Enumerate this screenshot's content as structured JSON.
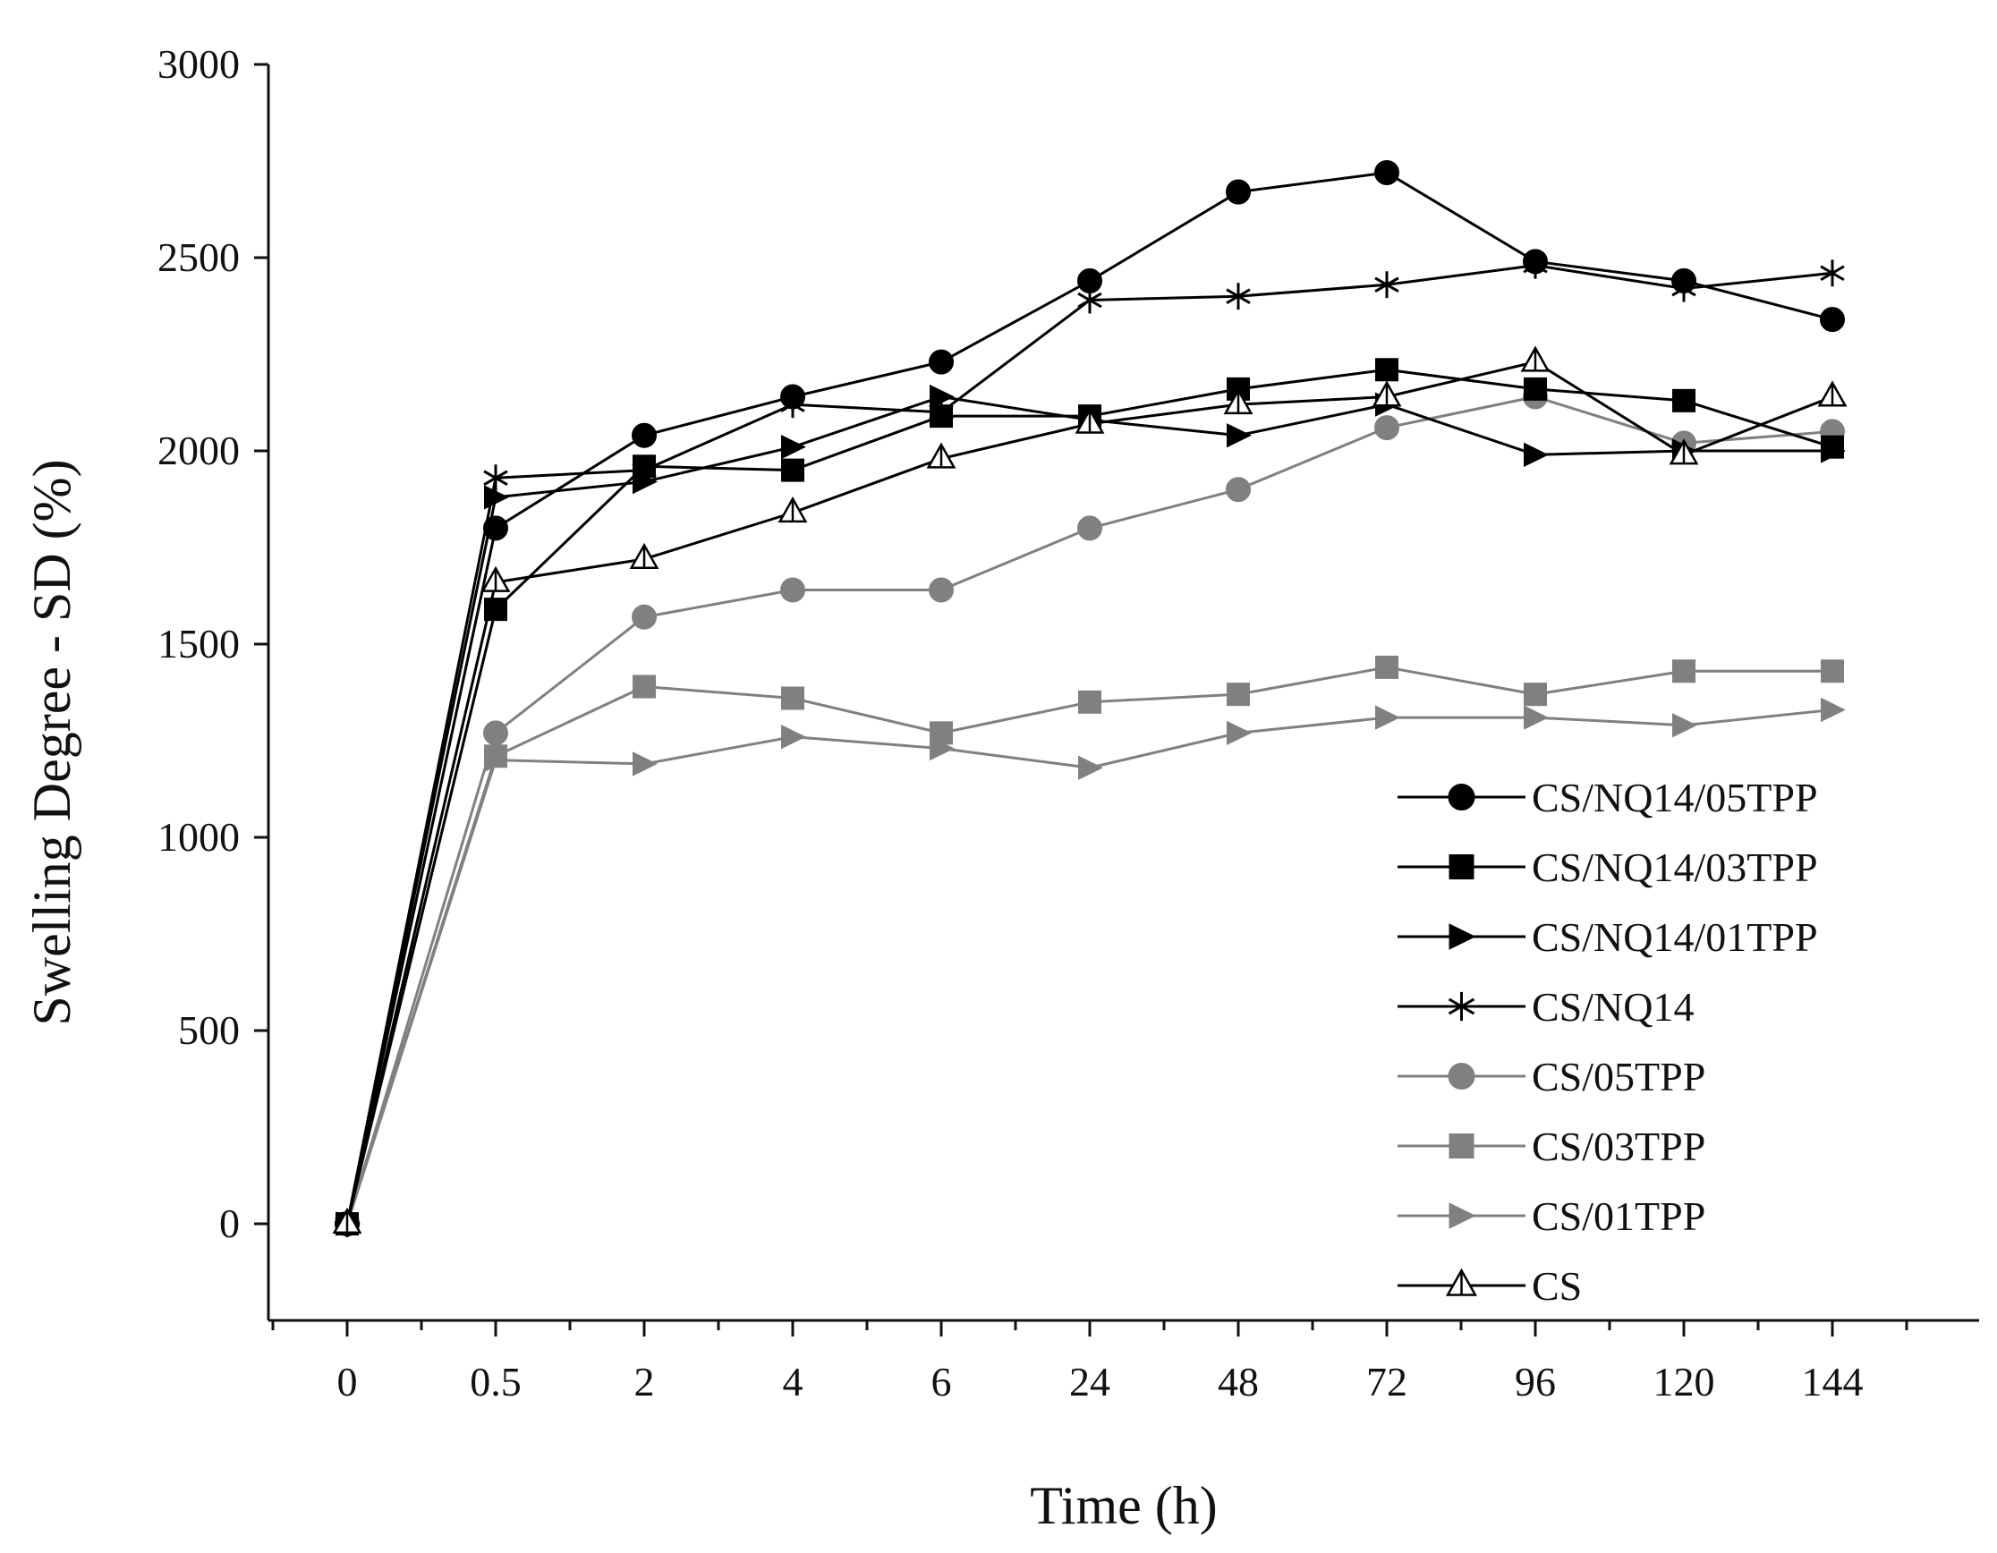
{
  "chart_data": {
    "type": "line",
    "title": "",
    "xlabel": "Time (h)",
    "ylabel": "Swelling Degree - SD (%)",
    "ylim": [
      -250,
      3000
    ],
    "yticks": [
      0,
      500,
      1000,
      1500,
      2000,
      2500,
      3000
    ],
    "categories": [
      "0",
      "0.5",
      "2",
      "4",
      "6",
      "24",
      "48",
      "72",
      "96",
      "120",
      "144"
    ],
    "grid": false,
    "legend_position": "bottom-right",
    "series": [
      {
        "name": "CS/NQ14/05TPP",
        "color": "#000000",
        "marker": "circle",
        "values": [
          0,
          1800,
          2040,
          2140,
          2230,
          2440,
          2670,
          2720,
          2490,
          2440,
          2340
        ]
      },
      {
        "name": "CS/NQ14/03TPP",
        "color": "#000000",
        "marker": "square",
        "values": [
          0,
          1590,
          1960,
          1950,
          2090,
          2090,
          2160,
          2210,
          2160,
          2130,
          2010
        ]
      },
      {
        "name": "CS/NQ14/01TPP",
        "color": "#000000",
        "marker": "triangle-right",
        "values": [
          0,
          1880,
          1920,
          2010,
          2140,
          2080,
          2040,
          2120,
          1990,
          2000,
          2000
        ]
      },
      {
        "name": "CS/NQ14",
        "color": "#000000",
        "marker": "asterisk",
        "values": [
          0,
          1930,
          1950,
          2120,
          2100,
          2390,
          2400,
          2430,
          2480,
          2420,
          2460
        ]
      },
      {
        "name": "CS/05TPP",
        "color": "#808080",
        "marker": "circle",
        "values": [
          0,
          1270,
          1570,
          1640,
          1640,
          1800,
          1900,
          2060,
          2140,
          2020,
          2050
        ]
      },
      {
        "name": "CS/03TPP",
        "color": "#808080",
        "marker": "square",
        "values": [
          0,
          1210,
          1390,
          1360,
          1270,
          1350,
          1370,
          1440,
          1370,
          1430,
          1430
        ]
      },
      {
        "name": "CS/01TPP",
        "color": "#808080",
        "marker": "triangle-right",
        "values": [
          0,
          1200,
          1190,
          1260,
          1230,
          1180,
          1270,
          1310,
          1310,
          1290,
          1330
        ]
      },
      {
        "name": "CS",
        "color": "#000000",
        "marker": "triangle-open",
        "values": [
          0,
          1660,
          1720,
          1840,
          1980,
          2070,
          2120,
          2140,
          2230,
          1990,
          2140
        ]
      }
    ]
  }
}
